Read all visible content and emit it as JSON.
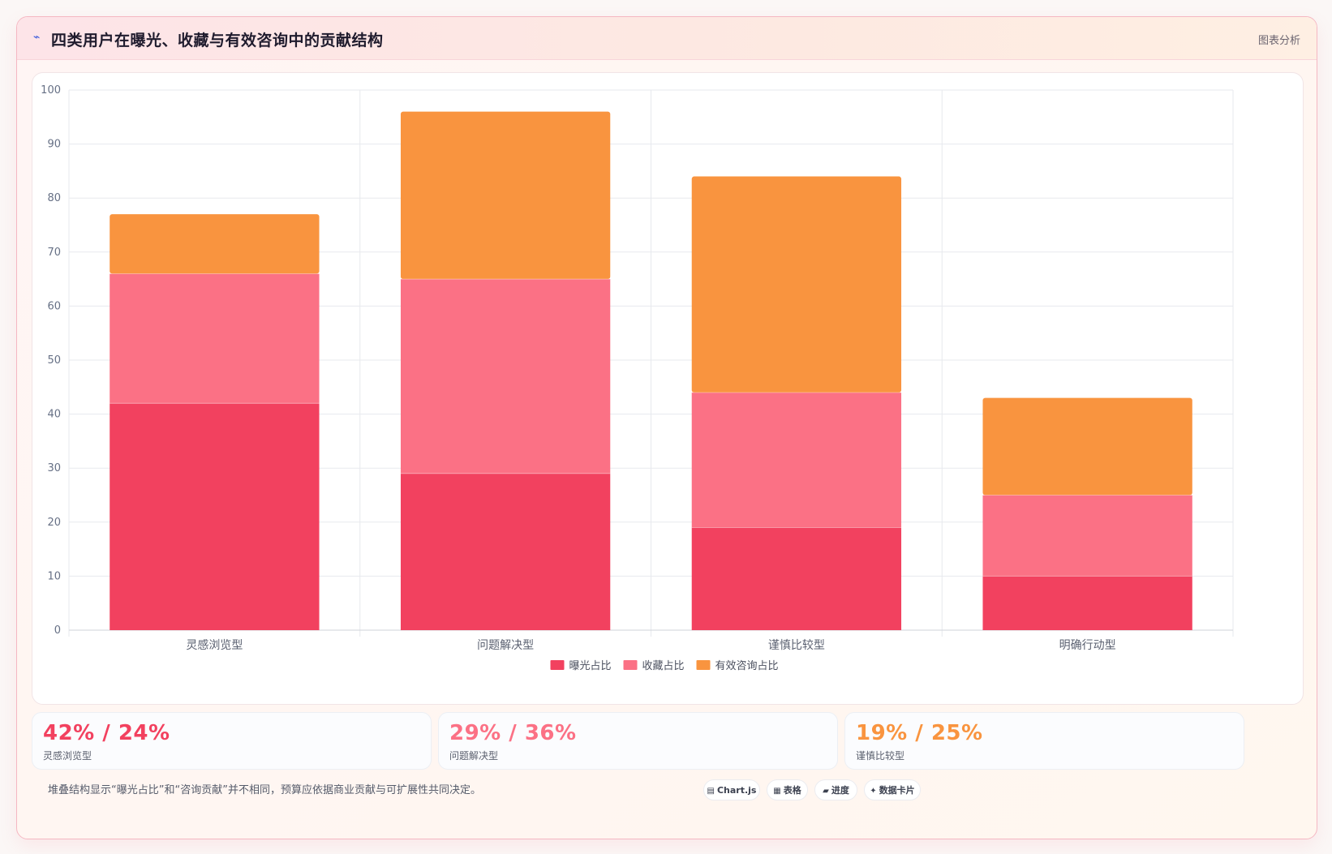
{
  "header": {
    "title": "四类用户在曝光、收藏与有效咨询中的贡献结构",
    "right_label": "图表分析",
    "title_icon": "pulse-icon"
  },
  "colors": {
    "exposure": "#f2415f",
    "favorite": "#fb7185",
    "inquiry": "#f9943f"
  },
  "chart_data": {
    "type": "bar",
    "stacked": true,
    "categories": [
      "灵感浏览型",
      "问题解决型",
      "谨慎比较型",
      "明确行动型"
    ],
    "series": [
      {
        "name": "曝光占比",
        "values": [
          42,
          29,
          19,
          10
        ],
        "color": "#f2415f"
      },
      {
        "name": "收藏占比",
        "values": [
          24,
          36,
          25,
          15
        ],
        "color": "#fb7185"
      },
      {
        "name": "有效咨询占比",
        "values": [
          11,
          31,
          40,
          18
        ],
        "color": "#f9943f"
      }
    ],
    "ylim": [
      0,
      100
    ],
    "yticks": [
      0,
      10,
      20,
      30,
      40,
      50,
      60,
      70,
      80,
      90,
      100
    ],
    "grid": true,
    "legend_position": "bottom"
  },
  "stats": [
    {
      "value": "42% / 24%",
      "label": "灵感浏览型",
      "color": "#f2415f"
    },
    {
      "value": "29% / 36%",
      "label": "问题解决型",
      "color": "#fb7185"
    },
    {
      "value": "19% / 25%",
      "label": "谨慎比较型",
      "color": "#f9943f"
    }
  ],
  "footnote": "堆叠结构显示“曝光占比”和“咨询贡献”并不相同，预算应依据商业贡献与可扩展性共同决定。",
  "badges": [
    {
      "glyph": "▤",
      "label": "Chart.js",
      "icon": "chart-icon"
    },
    {
      "glyph": "▦",
      "label": "表格",
      "icon": "table-icon"
    },
    {
      "glyph": "▰",
      "label": "进度",
      "icon": "progress-icon"
    },
    {
      "glyph": "✦",
      "label": "数据卡片",
      "icon": "sparkle-icon"
    }
  ]
}
